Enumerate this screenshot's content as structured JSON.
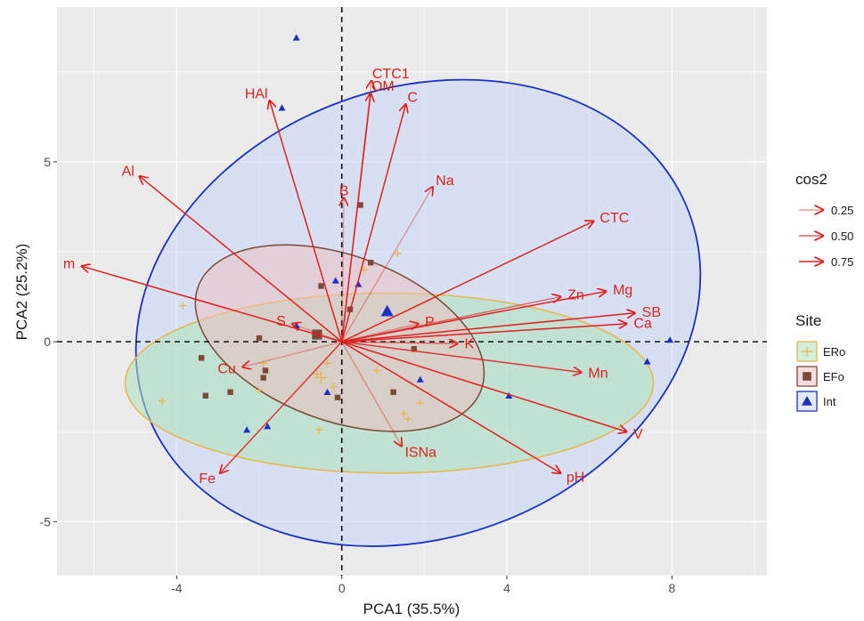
{
  "chart_data": {
    "type": "scatter",
    "subtype": "pca-biplot",
    "xlabel": "PCA1 (35.5%)",
    "ylabel": "PCA2 (25.2%)",
    "xlim": [
      -6.9,
      10.3
    ],
    "ylim": [
      -6.5,
      9.3
    ],
    "x_ticks": [
      -4,
      0,
      4,
      8
    ],
    "y_ticks": [
      -5,
      0,
      5
    ],
    "grid": true,
    "reference_lines": {
      "x": 0,
      "y": 0,
      "style": "dashed"
    },
    "colors": {
      "panel": "#ebebeb",
      "grid": "#ffffff",
      "arrow": "#e02020",
      "ERo": "#e8b64a",
      "EFo": "#7a4a3a",
      "Int": "#1c2fc8"
    },
    "variables": [
      {
        "name": "CTC1",
        "x": 0.72,
        "y": 7.25,
        "cos2": 0.2
      },
      {
        "name": "HAl",
        "x": -1.75,
        "y": 6.7,
        "cos2": 0.8
      },
      {
        "name": "OM",
        "x": 0.7,
        "y": 6.9,
        "cos2": 0.8
      },
      {
        "name": "C",
        "x": 1.55,
        "y": 6.6,
        "cos2": 0.8
      },
      {
        "name": "Al",
        "x": -4.9,
        "y": 4.6,
        "cos2": 0.8
      },
      {
        "name": "B",
        "x": 0.05,
        "y": 4.0,
        "cos2": 0.25
      },
      {
        "name": "Na",
        "x": 2.2,
        "y": 4.3,
        "cos2": 0.3
      },
      {
        "name": "CTC",
        "x": 6.1,
        "y": 3.35,
        "cos2": 0.8
      },
      {
        "name": "m",
        "x": -6.3,
        "y": 2.1,
        "cos2": 0.8
      },
      {
        "name": "Mg",
        "x": 6.4,
        "y": 1.4,
        "cos2": 0.8
      },
      {
        "name": "Zn",
        "x": 5.3,
        "y": 1.25,
        "cos2": 0.5
      },
      {
        "name": "SB",
        "x": 7.1,
        "y": 0.8,
        "cos2": 0.8
      },
      {
        "name": "S",
        "x": -1.2,
        "y": 0.5,
        "cos2": 0.25
      },
      {
        "name": "P",
        "x": 1.85,
        "y": 0.5,
        "cos2": 0.3
      },
      {
        "name": "Ca",
        "x": 6.9,
        "y": 0.5,
        "cos2": 0.8
      },
      {
        "name": "K",
        "x": 2.8,
        "y": -0.05,
        "cos2": 0.5
      },
      {
        "name": "Mn",
        "x": 5.8,
        "y": -0.85,
        "cos2": 0.7
      },
      {
        "name": "Cu",
        "x": -2.4,
        "y": -0.7,
        "cos2": 0.25
      },
      {
        "name": "V",
        "x": 6.9,
        "y": -2.5,
        "cos2": 0.8
      },
      {
        "name": "ISNa",
        "x": 1.45,
        "y": -2.9,
        "cos2": 0.3
      },
      {
        "name": "pH",
        "x": 5.3,
        "y": -3.65,
        "cos2": 0.8
      },
      {
        "name": "Fe",
        "x": -2.95,
        "y": -3.65,
        "cos2": 0.7
      }
    ],
    "groups": [
      {
        "name": "ERo",
        "shape": "cross",
        "ellipse": {
          "cx": 1.15,
          "cy": -1.15,
          "rx": 6.4,
          "ry": 2.5,
          "angle_deg": 0
        },
        "centroid": {
          "x": -0.5,
          "y": -1.0
        },
        "points": [
          {
            "x": -3.85,
            "y": 1.0
          },
          {
            "x": -4.35,
            "y": -1.65
          },
          {
            "x": -2.0,
            "y": -1.35
          },
          {
            "x": -0.6,
            "y": -0.9
          },
          {
            "x": -0.35,
            "y": -0.6
          },
          {
            "x": -0.2,
            "y": -1.25
          },
          {
            "x": 0.85,
            "y": -0.8
          },
          {
            "x": 1.5,
            "y": -2.0
          },
          {
            "x": 1.6,
            "y": -2.15
          },
          {
            "x": 1.9,
            "y": -1.7
          },
          {
            "x": -0.55,
            "y": -2.45
          },
          {
            "x": 0.55,
            "y": 2.0
          },
          {
            "x": 1.35,
            "y": 2.45
          },
          {
            "x": -1.9,
            "y": -0.6
          }
        ]
      },
      {
        "name": "EFo",
        "shape": "square",
        "ellipse": {
          "cx": -0.05,
          "cy": 0.1,
          "rx": 3.65,
          "ry": 2.3,
          "angle_deg": 20
        },
        "centroid": {
          "x": -0.6,
          "y": 0.2
        },
        "points": [
          {
            "x": -3.4,
            "y": -0.45
          },
          {
            "x": -3.3,
            "y": -1.5
          },
          {
            "x": -2.0,
            "y": 0.1
          },
          {
            "x": -1.85,
            "y": -0.8
          },
          {
            "x": -1.9,
            "y": -1.0
          },
          {
            "x": -0.5,
            "y": 1.55
          },
          {
            "x": 0.2,
            "y": 0.9
          },
          {
            "x": 0.45,
            "y": 3.8
          },
          {
            "x": 0.7,
            "y": 2.2
          },
          {
            "x": 1.25,
            "y": -1.4
          },
          {
            "x": 1.75,
            "y": -0.2
          },
          {
            "x": -0.1,
            "y": -1.55
          },
          {
            "x": -2.7,
            "y": -1.4
          }
        ]
      },
      {
        "name": "Int",
        "shape": "triangle",
        "ellipse": {
          "cx": 1.85,
          "cy": 0.8,
          "rx": 7.0,
          "ry": 6.25,
          "angle_deg": -20
        },
        "centroid": {
          "x": 1.1,
          "y": 0.85
        },
        "points": [
          {
            "x": -1.1,
            "y": 8.45
          },
          {
            "x": -1.45,
            "y": 6.5
          },
          {
            "x": -0.15,
            "y": 1.7
          },
          {
            "x": 0.4,
            "y": 1.6
          },
          {
            "x": -1.1,
            "y": 0.45
          },
          {
            "x": -0.35,
            "y": -1.4
          },
          {
            "x": 1.9,
            "y": -1.05
          },
          {
            "x": -1.8,
            "y": -2.35
          },
          {
            "x": -2.3,
            "y": -2.45
          },
          {
            "x": 4.05,
            "y": -1.5
          },
          {
            "x": 7.4,
            "y": -0.55
          },
          {
            "x": 7.95,
            "y": 0.05
          }
        ]
      }
    ],
    "legends": {
      "cos2": {
        "title": "cos2",
        "items": [
          "0.25",
          "0.50",
          "0.75"
        ]
      },
      "site": {
        "title": "Site",
        "items": [
          "ERo",
          "EFo",
          "Int"
        ]
      }
    }
  }
}
